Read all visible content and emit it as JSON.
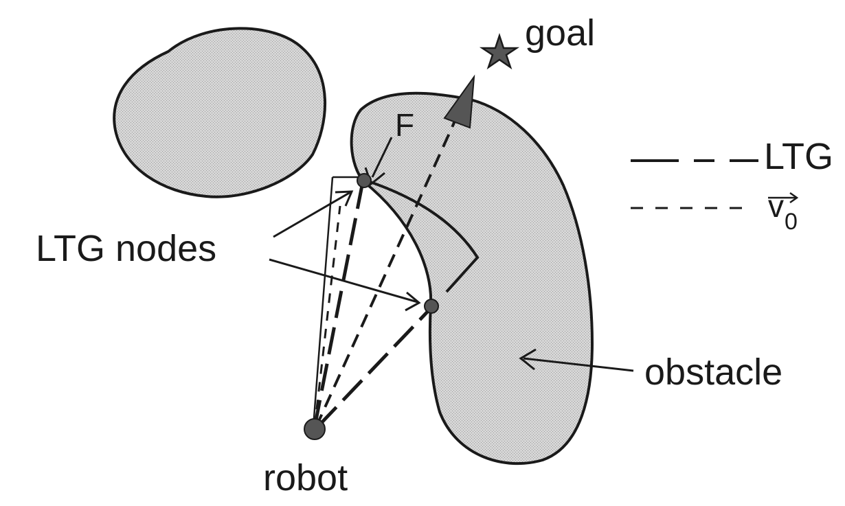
{
  "labels": {
    "goal": "goal",
    "ltg_nodes": "LTG nodes",
    "robot": "robot",
    "obstacle": "obstacle",
    "force": "F"
  },
  "legend": {
    "ltg": "LTG",
    "velocity_symbol": "v",
    "velocity_subscript": "0"
  },
  "colors": {
    "obstacle_fill": "#cfcfcf",
    "stroke": "#1a1a1a",
    "node_fill": "#555555"
  },
  "icons": {
    "goal": "star-icon",
    "robot": "robot-dot-icon"
  }
}
